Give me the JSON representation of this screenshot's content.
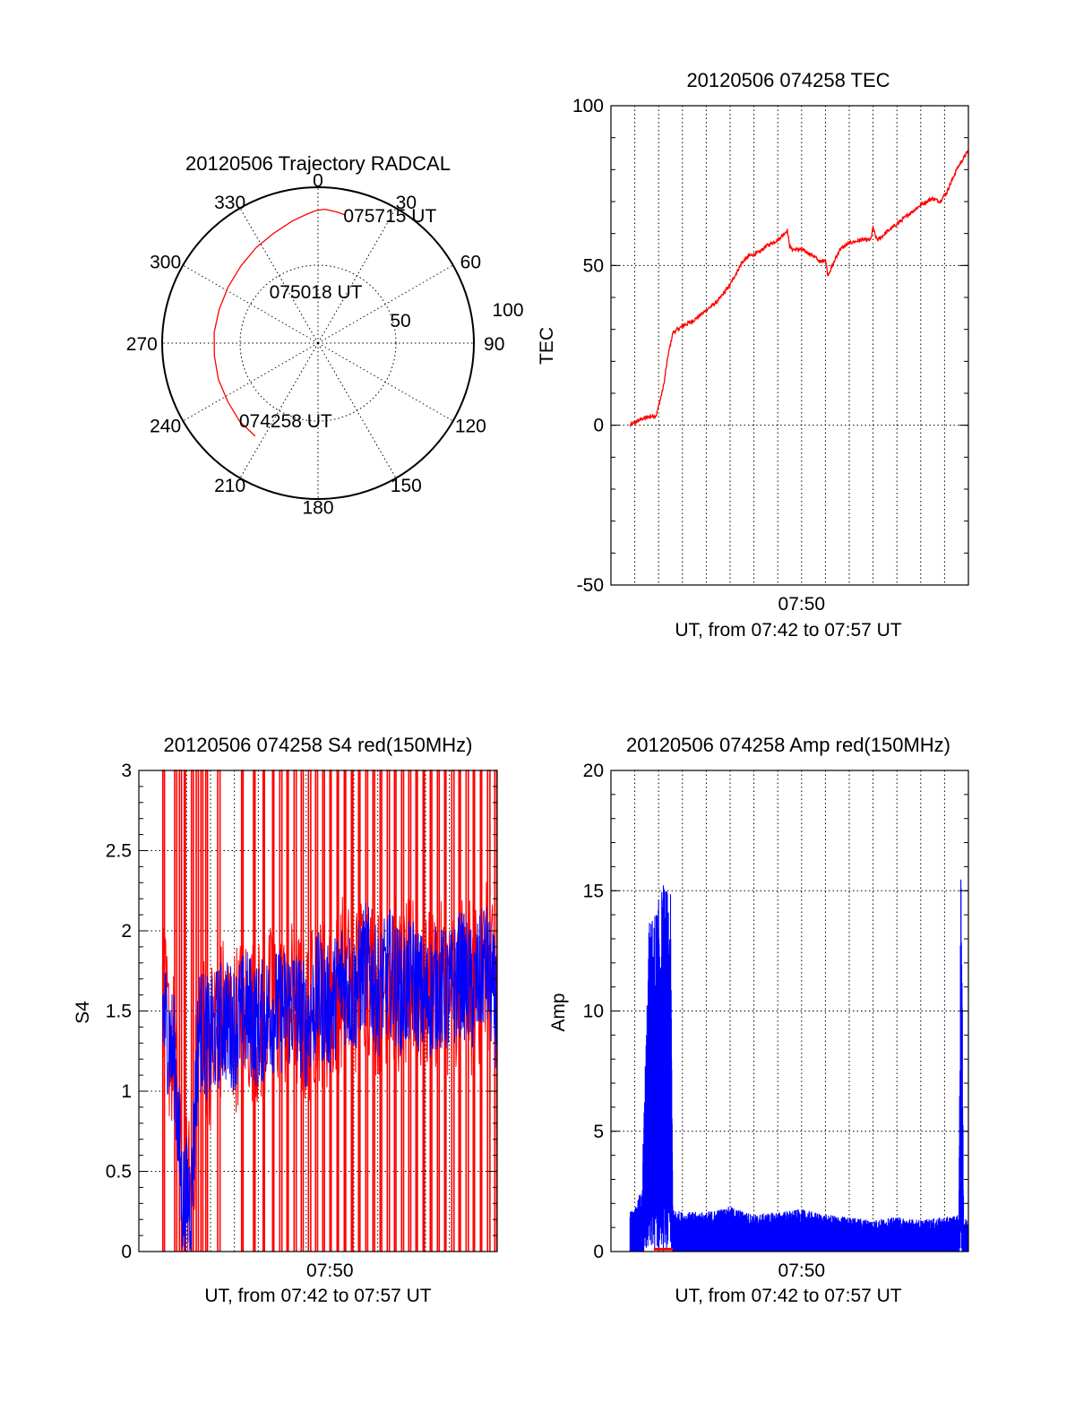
{
  "colors": {
    "red": "#ff0000",
    "blue": "#0000ff",
    "axis": "#000000"
  },
  "chart_data": [
    {
      "id": "trajectory",
      "type": "polar",
      "title": "20120506 Trajectory RADCAL",
      "angle_labels": [
        "0",
        "30",
        "60",
        "90",
        "120",
        "150",
        "180",
        "210",
        "240",
        "270",
        "300",
        "330"
      ],
      "radius_labels": [
        "50",
        "100"
      ],
      "rlim": [
        0,
        100
      ],
      "zenith_angle_grid": [
        50,
        100
      ],
      "grid": true,
      "series": [
        {
          "color": "red",
          "points": [
            {
              "az": 214,
              "r": 72
            },
            {
              "az": 225,
              "r": 71
            },
            {
              "az": 237,
              "r": 69
            },
            {
              "az": 250,
              "r": 68
            },
            {
              "az": 263,
              "r": 67
            },
            {
              "az": 276,
              "r": 67
            },
            {
              "az": 289,
              "r": 67
            },
            {
              "az": 302,
              "r": 68
            },
            {
              "az": 315,
              "r": 70
            },
            {
              "az": 327,
              "r": 73
            },
            {
              "az": 338,
              "r": 76
            },
            {
              "az": 348,
              "r": 80
            },
            {
              "az": 355,
              "r": 83
            },
            {
              "az": 359,
              "r": 85
            },
            {
              "az": 3,
              "r": 86
            },
            {
              "az": 8,
              "r": 85
            },
            {
              "az": 12,
              "r": 84
            }
          ]
        }
      ],
      "annotations": [
        {
          "text": "075715 UT",
          "az": 12,
          "r": 84
        },
        {
          "text": "075018 UT",
          "az": 318,
          "r": 45
        },
        {
          "text": "074258 UT",
          "az": 225,
          "r": 70
        }
      ]
    },
    {
      "id": "tec",
      "type": "line",
      "title": "20120506 074258 TEC",
      "xlabel": "UT, from 07:42 to 07:57 UT",
      "ylabel": "TEC",
      "xlim": [
        0,
        15
      ],
      "ylim": [
        -50,
        100
      ],
      "yticks": [
        -50,
        0,
        50,
        100
      ],
      "xticks": [
        {
          "value": 8,
          "label": "07:50"
        }
      ],
      "x_unit": "minutes after 07:42 UT",
      "grid": true,
      "series": [
        {
          "color": "red",
          "x": [
            0.8,
            1.3,
            1.8,
            1.9,
            2.2,
            2.4,
            2.6,
            2.8,
            3.0,
            3.5,
            4.0,
            4.5,
            5.0,
            5.5,
            5.8,
            6.2,
            6.5,
            7.0,
            7.4,
            7.5,
            7.6,
            8.0,
            8.5,
            8.8,
            9.0,
            9.1,
            9.3,
            9.6,
            10.0,
            10.5,
            10.9,
            11.0,
            11.1,
            11.2,
            11.5,
            12.0,
            12.5,
            13.0,
            13.5,
            13.8,
            14.1,
            14.5,
            15.0
          ],
          "values": [
            0,
            2,
            3,
            3,
            12,
            22,
            29,
            30,
            31,
            33,
            36,
            39,
            44,
            51,
            53,
            54,
            56,
            58,
            61,
            56,
            55,
            55,
            53,
            51,
            52,
            47,
            50,
            55,
            57,
            58,
            58,
            62,
            59,
            58,
            60,
            63,
            66,
            69,
            71,
            70,
            73,
            80,
            86
          ]
        }
      ]
    },
    {
      "id": "s4",
      "type": "line",
      "title": "20120506 074258 S4 red(150MHz)",
      "xlabel": "UT, from 07:42 to 07:57 UT",
      "ylabel": "S4",
      "xlim": [
        0,
        15
      ],
      "ylim": [
        0,
        3
      ],
      "yticks": [
        0,
        0.5,
        1,
        1.5,
        2,
        2.5,
        3
      ],
      "xticks": [
        {
          "value": 8,
          "label": "07:50"
        }
      ],
      "x_unit": "minutes after 07:42 UT",
      "grid": true,
      "series": [
        {
          "color": "blue",
          "x": [
            1.0,
            1.5,
            1.8,
            2.0,
            2.2,
            2.5,
            3.0,
            3.5,
            4.0,
            4.5,
            5.0,
            5.5,
            6.0,
            6.5,
            7.0,
            7.5,
            8.0,
            8.5,
            9.0,
            9.5,
            10.0,
            10.5,
            11.0,
            11.5,
            12.0,
            12.5,
            13.0,
            13.5,
            14.0,
            14.5,
            15.0
          ],
          "values": [
            1.5,
            1.2,
            0.33,
            0.33,
            0.33,
            1.4,
            1.3,
            1.45,
            1.4,
            1.5,
            1.4,
            1.5,
            1.5,
            1.55,
            1.4,
            1.6,
            1.5,
            1.7,
            1.6,
            1.8,
            1.6,
            1.75,
            1.6,
            1.7,
            1.55,
            1.65,
            1.6,
            1.75,
            1.6,
            1.8,
            1.5
          ]
        },
        {
          "color": "red",
          "spike_x": [
            1.0,
            1.5,
            1.7,
            1.9,
            2.2,
            2.4,
            2.6,
            2.8,
            3.3,
            4.3,
            4.8,
            5.2,
            5.6,
            5.9,
            6.2,
            6.5,
            6.8,
            7.1,
            7.4,
            7.7,
            8.0,
            8.3,
            8.6,
            8.9,
            9.2,
            9.5,
            9.8,
            10.1,
            10.4,
            10.7,
            11.0,
            11.3,
            11.6,
            11.9,
            12.2,
            12.5,
            12.8,
            13.1,
            13.4,
            13.7,
            14.0,
            14.3,
            14.6,
            14.9
          ],
          "range": [
            0,
            3
          ]
        }
      ]
    },
    {
      "id": "amp",
      "type": "line",
      "title": "20120506 074258 Amp red(150MHz)",
      "xlabel": "UT, from 07:42 to 07:57 UT",
      "ylabel": "Amp",
      "xlim": [
        0,
        15
      ],
      "ylim": [
        0,
        20
      ],
      "yticks": [
        0,
        5,
        10,
        15,
        20
      ],
      "xticks": [
        {
          "value": 8,
          "label": "07:50"
        }
      ],
      "x_unit": "minutes after 07:42 UT",
      "grid": true,
      "series": [
        {
          "color": "blue",
          "x": [
            0.8,
            1.0,
            1.3,
            1.6,
            1.9,
            2.2,
            2.5,
            2.6,
            3.0,
            4.0,
            5.0,
            6.0,
            7.0,
            8.0,
            9.0,
            10.0,
            11.0,
            12.0,
            13.0,
            14.0,
            14.6,
            14.7,
            14.8,
            15.0
          ],
          "values": [
            1.5,
            1.6,
            2.5,
            12.5,
            13.0,
            14.0,
            13.5,
            1.6,
            1.5,
            1.5,
            1.7,
            1.4,
            1.5,
            1.6,
            1.4,
            1.3,
            1.2,
            1.3,
            1.2,
            1.3,
            1.4,
            17.0,
            1.3,
            1.2
          ]
        },
        {
          "color": "red",
          "x": [
            1.8,
            2.6
          ],
          "values": [
            0.1,
            0.1
          ]
        }
      ]
    }
  ]
}
